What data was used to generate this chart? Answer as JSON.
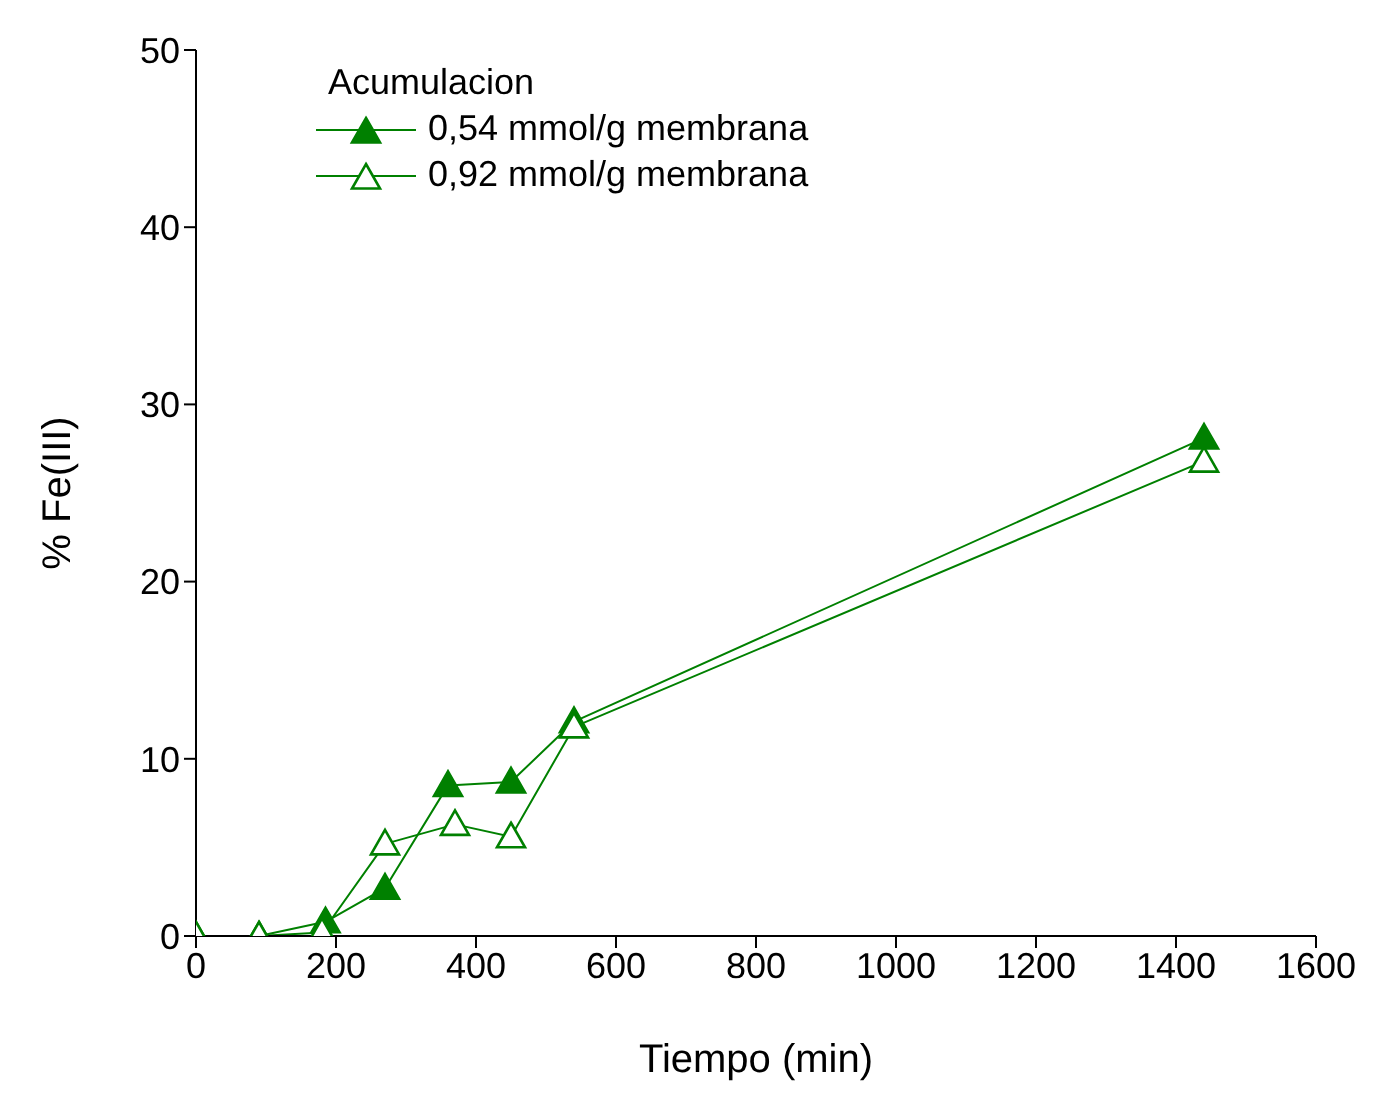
{
  "chart_data": {
    "type": "line",
    "xlabel": "Tiempo (min)",
    "ylabel": "% Fe(III)",
    "legend_title": "Acumulacion",
    "legend": "top left",
    "grid": false,
    "marker": "triangle",
    "line_style": "solid",
    "xlim": [
      0,
      1600
    ],
    "xticks": [
      0,
      200,
      400,
      600,
      800,
      1000,
      1200,
      1400,
      1600
    ],
    "ylim": [
      0,
      50
    ],
    "yticks": [
      0,
      10,
      20,
      30,
      40,
      50
    ],
    "series": [
      {
        "name": "0,54 mmol/g membrana",
        "color": "#008000",
        "x": [
          0,
          90,
          185,
          270,
          360,
          450,
          540,
          1440
        ],
        "values": [
          0,
          0,
          0.8,
          2.7,
          8.5,
          8.7,
          12.1,
          28.1
        ]
      },
      {
        "name": "0,92 mmol/g membrana",
        "color": "#008000",
        "x": [
          0,
          90,
          180,
          270,
          370,
          450,
          540,
          1440
        ],
        "values": [
          0,
          0,
          0.2,
          5.2,
          6.3,
          5.6,
          11.8,
          26.8
        ]
      }
    ]
  }
}
